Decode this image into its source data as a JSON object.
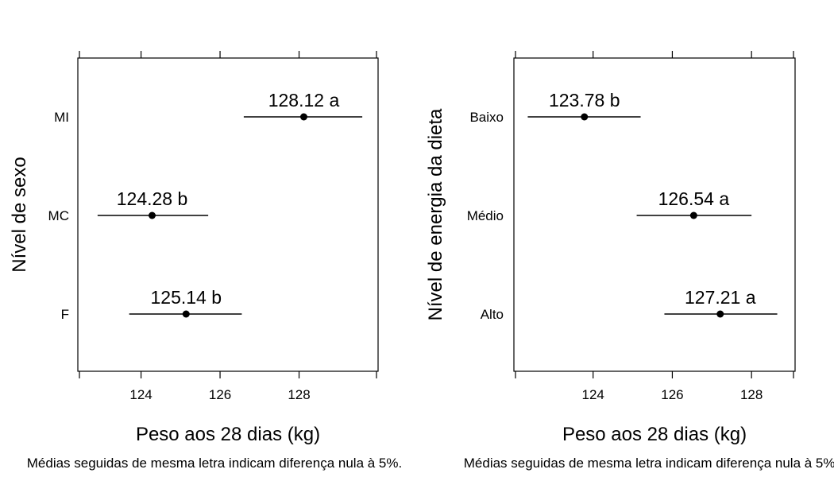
{
  "chart_data": [
    {
      "type": "dotplot-ci",
      "xlabel": "Peso aos 28 dias (kg)",
      "ylabel": "Nível de sexo",
      "xlim": [
        122.4,
        130.0
      ],
      "xticks": [
        124,
        126,
        128
      ],
      "footnote": "Médias seguidas de mesma letra indicam diferença nula à 5%.",
      "points": [
        {
          "category": "MI",
          "mean": 128.12,
          "lower": 126.6,
          "upper": 129.6,
          "letter": "a",
          "label": "128.12 a"
        },
        {
          "category": "MC",
          "mean": 124.28,
          "lower": 122.9,
          "upper": 125.7,
          "letter": "b",
          "label": "124.28 b"
        },
        {
          "category": "F",
          "mean": 125.14,
          "lower": 123.7,
          "upper": 126.55,
          "letter": "b",
          "label": "125.14 b"
        }
      ]
    },
    {
      "type": "dotplot-ci",
      "xlabel": "Peso aos 28 dias (kg)",
      "ylabel": "Nível de energia da dieta",
      "xlim": [
        122.0,
        129.1
      ],
      "xticks": [
        124,
        126,
        128
      ],
      "footnote": "Médias seguidas de mesma letra indicam diferença nula à 5%.",
      "points": [
        {
          "category": "Baixo",
          "mean": 123.78,
          "lower": 122.35,
          "upper": 125.2,
          "letter": "b",
          "label": "123.78 b"
        },
        {
          "category": "Médio",
          "mean": 126.54,
          "lower": 125.1,
          "upper": 128.0,
          "letter": "a",
          "label": "126.54 a"
        },
        {
          "category": "Alto",
          "mean": 127.21,
          "lower": 125.8,
          "upper": 128.65,
          "letter": "a",
          "label": "127.21 a"
        }
      ]
    }
  ]
}
